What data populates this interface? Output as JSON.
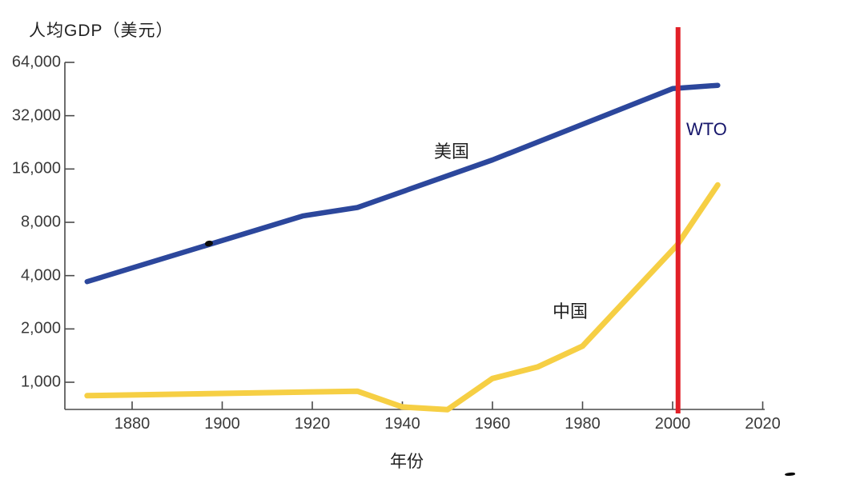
{
  "chart_data": {
    "type": "line",
    "title": "人均GDP（美元）",
    "xlabel": "年份",
    "y_scale": "log2",
    "grid": false,
    "legend_position": "inline-labels",
    "axis_color": "#4a4a4a",
    "tick_text_color": "#3a3a3a",
    "x_range": [
      1869,
      2022
    ],
    "y_range": [
      700,
      64000
    ],
    "x_ticks": [
      {
        "label": "1880",
        "value": 1880
      },
      {
        "label": "1900",
        "value": 1900
      },
      {
        "label": "1920",
        "value": 1920
      },
      {
        "label": "1940",
        "value": 1940
      },
      {
        "label": "1960",
        "value": 1960
      },
      {
        "label": "1980",
        "value": 1980
      },
      {
        "label": "2000",
        "value": 2000
      },
      {
        "label": "2020",
        "value": 2020
      }
    ],
    "y_ticks": [
      {
        "label": "64,000",
        "value": 64000
      },
      {
        "label": "32,000",
        "value": 32000
      },
      {
        "label": "16,000",
        "value": 16000
      },
      {
        "label": "8,000",
        "value": 8000
      },
      {
        "label": "4,000",
        "value": 4000
      },
      {
        "label": "2,000",
        "value": 2000
      },
      {
        "label": "1,000",
        "value": 1000
      }
    ],
    "series": [
      {
        "name": "美国",
        "color": "#2c479c",
        "stroke_width": 6.5,
        "points": [
          [
            1870,
            3700
          ],
          [
            1918,
            8700
          ],
          [
            1930,
            9700
          ],
          [
            1960,
            18000
          ],
          [
            2000,
            45500
          ],
          [
            2010,
            47500
          ]
        ]
      },
      {
        "name": "中国",
        "color": "#f6cf44",
        "stroke_width": 7,
        "points": [
          [
            1870,
            840
          ],
          [
            1930,
            890
          ],
          [
            1940,
            725
          ],
          [
            1950,
            700
          ],
          [
            1960,
            1050
          ],
          [
            1970,
            1220
          ],
          [
            1980,
            1600
          ],
          [
            2001,
            5950
          ],
          [
            2010,
            13000
          ]
        ]
      }
    ],
    "annotation": {
      "label": "WTO",
      "year": 2001.2,
      "line_color": "#e22028",
      "label_color": "#16166b"
    }
  }
}
